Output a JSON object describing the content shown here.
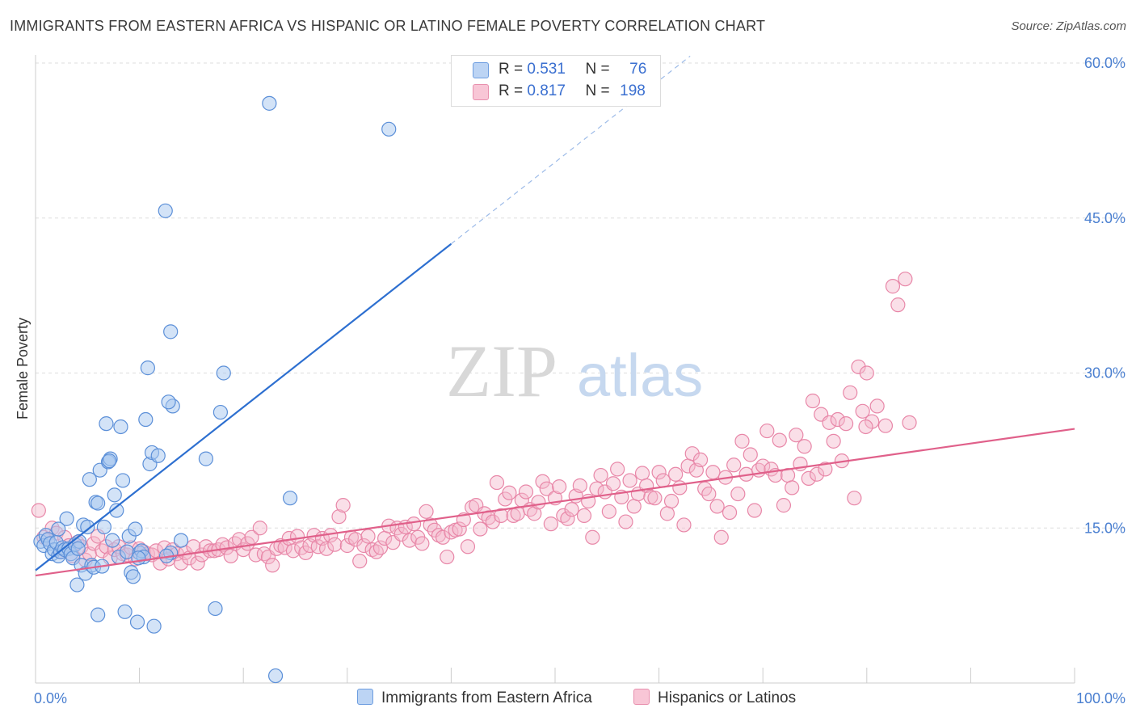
{
  "title": "IMMIGRANTS FROM EASTERN AFRICA VS HISPANIC OR LATINO FEMALE POVERTY CORRELATION CHART",
  "source": "Source: ZipAtlas.com",
  "watermark": {
    "zip": "ZIP",
    "atlas": "atlas"
  },
  "legend": {
    "rows": [
      {
        "r_label": "R =",
        "r_value": "0.531",
        "n_label": "N =",
        "n_value": "76"
      },
      {
        "r_label": "R =",
        "r_value": "0.817",
        "n_label": "N =",
        "n_value": "198"
      }
    ]
  },
  "bottom_legend": {
    "series1": "Immigrants from Eastern Africa",
    "series2": "Hispanics or Latinos"
  },
  "colors": {
    "blue_fill": "#a8c8f0",
    "blue_stroke": "#5b8fd8",
    "blue_line": "#2d6fd0",
    "pink_fill": "#f5b8cc",
    "pink_stroke": "#e887a8",
    "pink_line": "#e0608a",
    "grid": "#dddddd",
    "axis_label": "#4a7fd0"
  },
  "chart_data": {
    "type": "scatter",
    "title": "IMMIGRANTS FROM EASTERN AFRICA VS HISPANIC OR LATINO FEMALE POVERTY CORRELATION CHART",
    "xlabel": "",
    "ylabel": "Female Poverty",
    "xlim": [
      0,
      100
    ],
    "ylim": [
      0,
      60
    ],
    "x_tick_labels": [
      "0.0%",
      "100.0%"
    ],
    "y_ticks": [
      15,
      30,
      45,
      60
    ],
    "y_tick_labels": [
      "15.0%",
      "30.0%",
      "45.0%",
      "60.0%"
    ],
    "grid": true,
    "series": [
      {
        "name": "Immigrants from Eastern Africa",
        "R": 0.531,
        "N": 76,
        "trend": {
          "x0": 0,
          "y0": 10.9,
          "x1": 40,
          "y1": 42.5,
          "dashed_to_x": 63
        },
        "points": [
          [
            0.5,
            13.7
          ],
          [
            0.8,
            13.3
          ],
          [
            1.0,
            14.3
          ],
          [
            1.2,
            13.9
          ],
          [
            1.4,
            13.5
          ],
          [
            1.6,
            12.5
          ],
          [
            1.8,
            12.9
          ],
          [
            2.0,
            13.6
          ],
          [
            2.2,
            12.3
          ],
          [
            2.4,
            12.7
          ],
          [
            2.6,
            13.1
          ],
          [
            2.8,
            12.9
          ],
          [
            3.0,
            15.9
          ],
          [
            3.2,
            13.0
          ],
          [
            3.4,
            12.5
          ],
          [
            3.6,
            12.1
          ],
          [
            3.8,
            13.4
          ],
          [
            4.0,
            9.5
          ],
          [
            4.2,
            13.7
          ],
          [
            4.4,
            11.4
          ],
          [
            4.6,
            15.3
          ],
          [
            4.8,
            10.6
          ],
          [
            5.0,
            15.1
          ],
          [
            5.2,
            19.7
          ],
          [
            5.4,
            11.4
          ],
          [
            5.6,
            11.2
          ],
          [
            5.8,
            17.5
          ],
          [
            6.0,
            6.6
          ],
          [
            6.2,
            20.6
          ],
          [
            6.4,
            11.3
          ],
          [
            6.6,
            15.1
          ],
          [
            6.8,
            25.1
          ],
          [
            7.0,
            21.4
          ],
          [
            7.2,
            21.7
          ],
          [
            7.4,
            13.8
          ],
          [
            7.6,
            18.2
          ],
          [
            7.8,
            16.7
          ],
          [
            8.0,
            12.2
          ],
          [
            8.2,
            24.8
          ],
          [
            8.4,
            19.6
          ],
          [
            8.6,
            6.9
          ],
          [
            8.8,
            12.7
          ],
          [
            9.0,
            14.2
          ],
          [
            9.2,
            10.7
          ],
          [
            9.4,
            10.3
          ],
          [
            9.6,
            14.9
          ],
          [
            9.8,
            5.9
          ],
          [
            10.0,
            12.6
          ],
          [
            10.2,
            12.8
          ],
          [
            10.4,
            12.2
          ],
          [
            10.6,
            25.5
          ],
          [
            10.8,
            30.5
          ],
          [
            11.0,
            21.2
          ],
          [
            11.2,
            22.3
          ],
          [
            11.4,
            5.5
          ],
          [
            11.8,
            22.0
          ],
          [
            12.5,
            45.7
          ],
          [
            13.0,
            34.0
          ],
          [
            13.2,
            26.8
          ],
          [
            12.8,
            27.2
          ],
          [
            13.0,
            12.6
          ],
          [
            14.0,
            13.8
          ],
          [
            16.4,
            21.7
          ],
          [
            17.3,
            7.2
          ],
          [
            17.8,
            26.2
          ],
          [
            18.1,
            30.0
          ],
          [
            22.5,
            56.1
          ],
          [
            23.1,
            0.7
          ],
          [
            24.5,
            17.9
          ],
          [
            34.0,
            53.6
          ],
          [
            6.0,
            17.4
          ],
          [
            2.2,
            14.9
          ],
          [
            4.1,
            13.0
          ],
          [
            9.9,
            12.1
          ],
          [
            12.6,
            12.3
          ],
          [
            7.1,
            21.5
          ]
        ]
      },
      {
        "name": "Hispanics or Latinos",
        "R": 0.817,
        "N": 198,
        "trend": {
          "x0": 0,
          "y0": 10.4,
          "x1": 100,
          "y1": 24.6
        },
        "points": [
          [
            0.3,
            16.7
          ],
          [
            0.8,
            14.1
          ],
          [
            1.2,
            13.9
          ],
          [
            1.6,
            15.0
          ],
          [
            2.0,
            14.5
          ],
          [
            2.4,
            12.7
          ],
          [
            2.8,
            14.1
          ],
          [
            3.2,
            13.3
          ],
          [
            3.6,
            12.3
          ],
          [
            4.0,
            13.6
          ],
          [
            4.4,
            13.2
          ],
          [
            4.8,
            11.9
          ],
          [
            5.2,
            12.5
          ],
          [
            5.6,
            13.5
          ],
          [
            6.0,
            14.2
          ],
          [
            6.4,
            12.8
          ],
          [
            6.8,
            13.2
          ],
          [
            7.2,
            12.1
          ],
          [
            7.6,
            12.9
          ],
          [
            8.0,
            13.2
          ],
          [
            8.4,
            12.5
          ],
          [
            8.8,
            12.4
          ],
          [
            9.2,
            13.1
          ],
          [
            9.6,
            12.0
          ],
          [
            10.0,
            13.0
          ],
          [
            10.4,
            12.7
          ],
          [
            10.8,
            12.5
          ],
          [
            11.2,
            12.4
          ],
          [
            11.6,
            12.8
          ],
          [
            12.0,
            11.6
          ],
          [
            12.4,
            13.1
          ],
          [
            12.8,
            12.0
          ],
          [
            13.2,
            12.9
          ],
          [
            13.6,
            12.5
          ],
          [
            14.0,
            11.6
          ],
          [
            14.4,
            12.6
          ],
          [
            14.8,
            12.1
          ],
          [
            15.2,
            13.2
          ],
          [
            15.6,
            11.6
          ],
          [
            16.0,
            12.4
          ],
          [
            16.4,
            13.2
          ],
          [
            16.8,
            12.8
          ],
          [
            17.2,
            12.8
          ],
          [
            17.6,
            12.9
          ],
          [
            18.0,
            13.4
          ],
          [
            18.4,
            13.1
          ],
          [
            18.8,
            12.3
          ],
          [
            19.2,
            13.5
          ],
          [
            19.6,
            13.9
          ],
          [
            20.0,
            12.9
          ],
          [
            20.4,
            13.5
          ],
          [
            20.8,
            14.1
          ],
          [
            21.2,
            12.4
          ],
          [
            21.6,
            15.0
          ],
          [
            22.0,
            12.5
          ],
          [
            22.4,
            12.2
          ],
          [
            22.8,
            11.4
          ],
          [
            23.2,
            13.0
          ],
          [
            23.6,
            13.3
          ],
          [
            24.0,
            13.1
          ],
          [
            24.4,
            14.0
          ],
          [
            24.8,
            12.8
          ],
          [
            25.2,
            14.2
          ],
          [
            25.6,
            13.1
          ],
          [
            26.0,
            12.6
          ],
          [
            26.4,
            13.3
          ],
          [
            26.8,
            14.3
          ],
          [
            27.2,
            13.2
          ],
          [
            27.6,
            14.0
          ],
          [
            28.0,
            13.0
          ],
          [
            28.4,
            14.3
          ],
          [
            28.8,
            13.4
          ],
          [
            29.2,
            16.1
          ],
          [
            29.6,
            17.2
          ],
          [
            30.0,
            13.3
          ],
          [
            30.4,
            14.1
          ],
          [
            30.8,
            13.9
          ],
          [
            31.2,
            11.8
          ],
          [
            31.6,
            13.3
          ],
          [
            32.0,
            14.2
          ],
          [
            32.4,
            12.9
          ],
          [
            32.8,
            12.7
          ],
          [
            33.2,
            13.1
          ],
          [
            33.6,
            14.0
          ],
          [
            34.0,
            15.2
          ],
          [
            34.4,
            13.6
          ],
          [
            34.8,
            15.0
          ],
          [
            35.2,
            14.4
          ],
          [
            35.6,
            15.1
          ],
          [
            36.0,
            13.8
          ],
          [
            36.4,
            15.4
          ],
          [
            36.8,
            14.1
          ],
          [
            37.2,
            13.5
          ],
          [
            37.6,
            16.6
          ],
          [
            38.0,
            15.3
          ],
          [
            38.4,
            14.8
          ],
          [
            38.8,
            14.3
          ],
          [
            39.2,
            14.1
          ],
          [
            39.6,
            12.2
          ],
          [
            40.0,
            14.6
          ],
          [
            40.4,
            14.8
          ],
          [
            40.8,
            14.9
          ],
          [
            41.2,
            15.8
          ],
          [
            41.6,
            13.2
          ],
          [
            42.0,
            17.0
          ],
          [
            42.4,
            17.2
          ],
          [
            42.8,
            14.9
          ],
          [
            43.2,
            16.4
          ],
          [
            43.6,
            16.0
          ],
          [
            44.0,
            15.6
          ],
          [
            44.4,
            19.4
          ],
          [
            44.8,
            16.2
          ],
          [
            45.2,
            17.8
          ],
          [
            45.6,
            18.4
          ],
          [
            46.0,
            16.2
          ],
          [
            46.4,
            16.4
          ],
          [
            46.8,
            17.7
          ],
          [
            47.2,
            18.5
          ],
          [
            47.6,
            16.8
          ],
          [
            48.0,
            16.4
          ],
          [
            48.4,
            17.5
          ],
          [
            48.8,
            19.5
          ],
          [
            49.2,
            18.8
          ],
          [
            49.6,
            15.4
          ],
          [
            50.0,
            17.9
          ],
          [
            50.4,
            19.0
          ],
          [
            50.8,
            16.2
          ],
          [
            51.2,
            15.9
          ],
          [
            51.6,
            16.8
          ],
          [
            52.0,
            18.1
          ],
          [
            52.4,
            19.1
          ],
          [
            52.8,
            16.2
          ],
          [
            53.2,
            17.6
          ],
          [
            53.6,
            14.1
          ],
          [
            54.0,
            18.8
          ],
          [
            54.4,
            20.1
          ],
          [
            54.8,
            18.5
          ],
          [
            55.2,
            16.6
          ],
          [
            55.6,
            19.3
          ],
          [
            56.0,
            20.7
          ],
          [
            56.4,
            18.0
          ],
          [
            56.8,
            15.6
          ],
          [
            57.2,
            19.6
          ],
          [
            57.6,
            17.1
          ],
          [
            58.0,
            18.3
          ],
          [
            58.4,
            20.3
          ],
          [
            58.8,
            19.1
          ],
          [
            59.2,
            18.0
          ],
          [
            59.6,
            17.9
          ],
          [
            60.0,
            20.4
          ],
          [
            60.4,
            19.6
          ],
          [
            60.8,
            16.4
          ],
          [
            61.2,
            17.6
          ],
          [
            61.6,
            20.2
          ],
          [
            62.0,
            18.9
          ],
          [
            62.4,
            15.3
          ],
          [
            62.8,
            21.0
          ],
          [
            63.2,
            22.2
          ],
          [
            63.6,
            20.6
          ],
          [
            64.0,
            21.6
          ],
          [
            64.4,
            18.8
          ],
          [
            64.8,
            18.3
          ],
          [
            65.2,
            20.4
          ],
          [
            65.6,
            17.1
          ],
          [
            66.0,
            14.1
          ],
          [
            66.4,
            19.9
          ],
          [
            66.8,
            16.5
          ],
          [
            67.2,
            21.1
          ],
          [
            67.6,
            18.3
          ],
          [
            68.0,
            23.4
          ],
          [
            68.4,
            20.2
          ],
          [
            68.8,
            22.1
          ],
          [
            69.2,
            16.7
          ],
          [
            69.6,
            20.6
          ],
          [
            70.0,
            21.0
          ],
          [
            70.4,
            24.4
          ],
          [
            70.8,
            20.7
          ],
          [
            71.2,
            20.1
          ],
          [
            71.6,
            23.5
          ],
          [
            72.0,
            17.2
          ],
          [
            72.4,
            20.1
          ],
          [
            72.8,
            18.9
          ],
          [
            73.2,
            24.0
          ],
          [
            73.6,
            21.2
          ],
          [
            74.0,
            22.9
          ],
          [
            74.4,
            19.8
          ],
          [
            74.8,
            27.3
          ],
          [
            75.2,
            20.2
          ],
          [
            75.6,
            26.0
          ],
          [
            76.0,
            20.7
          ],
          [
            76.4,
            25.2
          ],
          [
            76.8,
            23.4
          ],
          [
            77.2,
            25.5
          ],
          [
            77.6,
            21.5
          ],
          [
            78.0,
            25.1
          ],
          [
            78.4,
            28.1
          ],
          [
            78.8,
            17.9
          ],
          [
            79.2,
            30.6
          ],
          [
            79.6,
            26.3
          ],
          [
            80.0,
            30.0
          ],
          [
            81.0,
            26.8
          ],
          [
            82.5,
            38.4
          ],
          [
            83.0,
            36.6
          ],
          [
            83.7,
            39.1
          ],
          [
            84.1,
            25.2
          ],
          [
            80.5,
            25.3
          ],
          [
            79.9,
            24.8
          ],
          [
            81.8,
            24.9
          ]
        ]
      }
    ]
  }
}
